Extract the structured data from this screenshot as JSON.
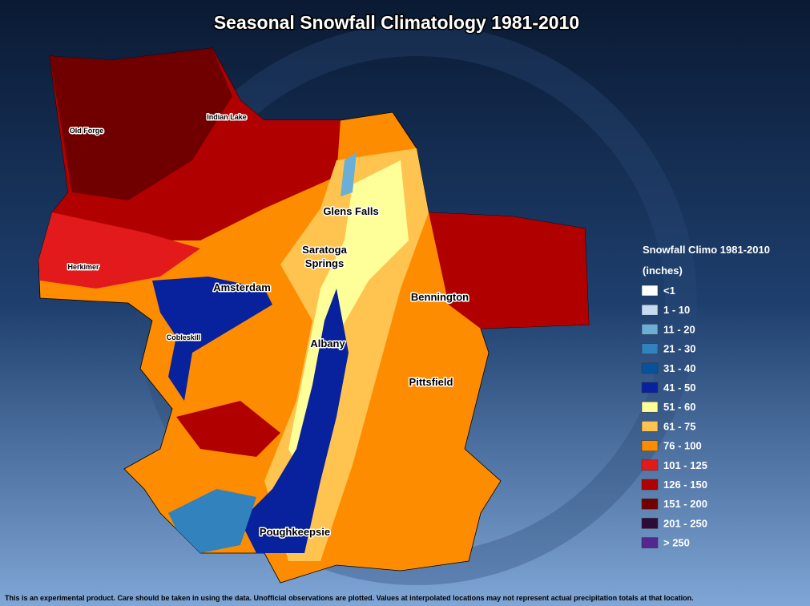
{
  "header": {
    "title": "Seasonal Snowfall Climatology 1981-2010"
  },
  "legend": {
    "title": "Snowfall Climo 1981-2010",
    "units": "(inches)",
    "items": [
      {
        "label": "<1",
        "color": "#ffffff"
      },
      {
        "label": "1 - 10",
        "color": "#c6dbef"
      },
      {
        "label": "11 - 20",
        "color": "#6baed6"
      },
      {
        "label": "21 - 30",
        "color": "#3182bd"
      },
      {
        "label": "31 - 40",
        "color": "#08519c"
      },
      {
        "label": "41 - 50",
        "color": "#08219c"
      },
      {
        "label": "51 - 60",
        "color": "#ffff99"
      },
      {
        "label": "61 - 75",
        "color": "#fec44f"
      },
      {
        "label": "76 - 100",
        "color": "#fe8c00"
      },
      {
        "label": "101 - 125",
        "color": "#e31a1c"
      },
      {
        "label": "126 - 150",
        "color": "#b10000"
      },
      {
        "label": "151 - 200",
        "color": "#700000"
      },
      {
        "label": "201 - 250",
        "color": "#2d0a3a"
      },
      {
        "label": "> 250",
        "color": "#54278f"
      }
    ]
  },
  "places": [
    "Old Forge",
    "Indian Lake",
    "Glens Falls",
    "Herkimer",
    "Saratoga",
    "Springs",
    "Amsterdam",
    "Bennington",
    "Cobleskill",
    "Albany",
    "Pittsfield",
    "Poughkeepsie"
  ],
  "footer": "This is an experimental product. Care should be taken in using the data. Unofficial observations are plotted. Values at interpolated locations may not represent actual precipitation totals at that location."
}
